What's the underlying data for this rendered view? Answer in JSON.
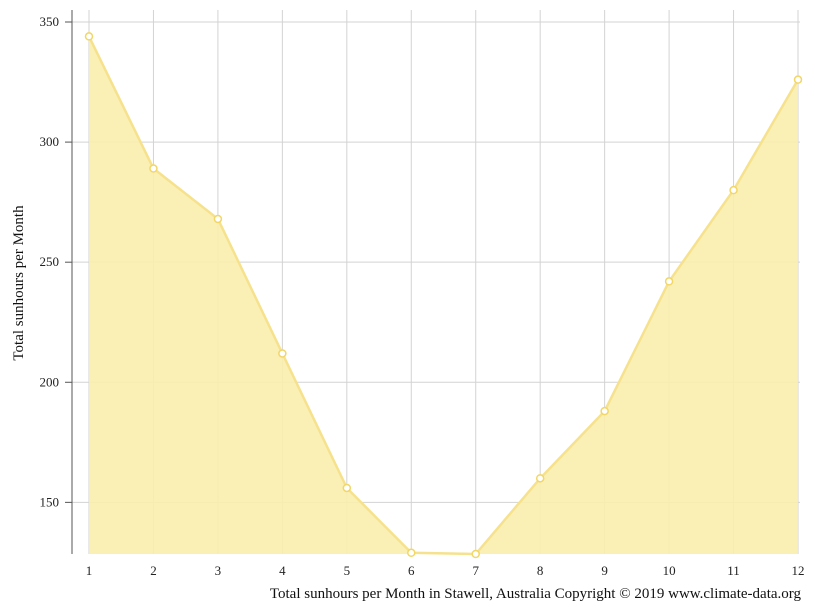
{
  "chart_data": {
    "type": "area",
    "ylabel": "Total sunhours per Month",
    "caption": "Total sunhours per Month in Stawell, Australia Copyright © 2019 www.climate-data.org",
    "x": [
      1,
      2,
      3,
      4,
      5,
      6,
      7,
      8,
      9,
      10,
      11,
      12
    ],
    "xticks": [
      "1",
      "2",
      "3",
      "4",
      "5",
      "6",
      "7",
      "8",
      "9",
      "10",
      "11",
      "12"
    ],
    "yticks": [
      "150",
      "200",
      "250",
      "300",
      "350"
    ],
    "ylim": [
      128.5,
      355
    ],
    "series": [
      {
        "values": [
          344,
          289,
          268,
          212,
          156,
          129,
          128.5,
          160,
          188,
          242,
          280,
          326
        ]
      }
    ],
    "grid": true,
    "colors": {
      "fill": "#f9eeae",
      "line": "#f6e28c",
      "marker_fill": "#ffffff",
      "marker_stroke": "#f2d666"
    }
  }
}
